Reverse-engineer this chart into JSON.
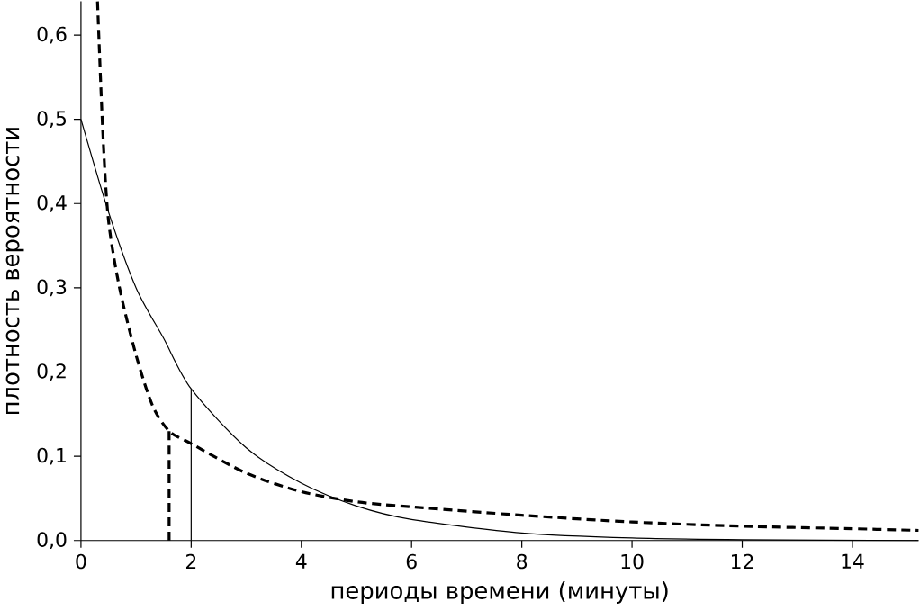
{
  "chart_data": {
    "type": "line",
    "xlabel": "периоды времени (минуты)",
    "ylabel": "плотность вероятности",
    "xlim": [
      0,
      15.2
    ],
    "ylim": [
      0,
      0.64
    ],
    "xticks": [
      0,
      2,
      4,
      6,
      8,
      10,
      12,
      14
    ],
    "yticks": [
      {
        "value": 0,
        "label": "0,0"
      },
      {
        "value": 0.1,
        "label": "0,1"
      },
      {
        "value": 0.2,
        "label": "0,2"
      },
      {
        "value": 0.3,
        "label": "0,3"
      },
      {
        "value": 0.4,
        "label": "0,4"
      },
      {
        "value": 0.5,
        "label": "0,5"
      },
      {
        "value": 0.6,
        "label": "0,6"
      }
    ],
    "series": [
      {
        "color": "#000000",
        "line_style": "solid",
        "x": [
          0,
          0.5,
          1,
          1.5,
          2,
          3,
          4,
          5,
          6,
          8,
          10,
          12,
          15.2
        ],
        "values": [
          0.5,
          0.39,
          0.3,
          0.24,
          0.18,
          0.11,
          0.068,
          0.041,
          0.025,
          0.009,
          0.003,
          0.001,
          0
        ]
      },
      {
        "color": "#000000",
        "line_style": "dashed",
        "x": [
          0.3,
          0.4,
          0.5,
          0.7,
          1,
          1.3,
          1.6,
          2,
          3,
          4,
          5,
          6,
          8,
          10,
          12,
          14,
          15.2
        ],
        "values": [
          0.64,
          0.48,
          0.38,
          0.3,
          0.22,
          0.16,
          0.13,
          0.115,
          0.08,
          0.058,
          0.046,
          0.04,
          0.03,
          0.022,
          0.017,
          0.014,
          0.012
        ]
      },
      {
        "color": "#000000",
        "line_style": "solid",
        "x": [
          2,
          2
        ],
        "values": [
          0,
          0.18
        ]
      },
      {
        "color": "#000000",
        "line_style": "dashed",
        "x": [
          1.6,
          1.6
        ],
        "values": [
          0,
          0.13
        ]
      }
    ]
  }
}
